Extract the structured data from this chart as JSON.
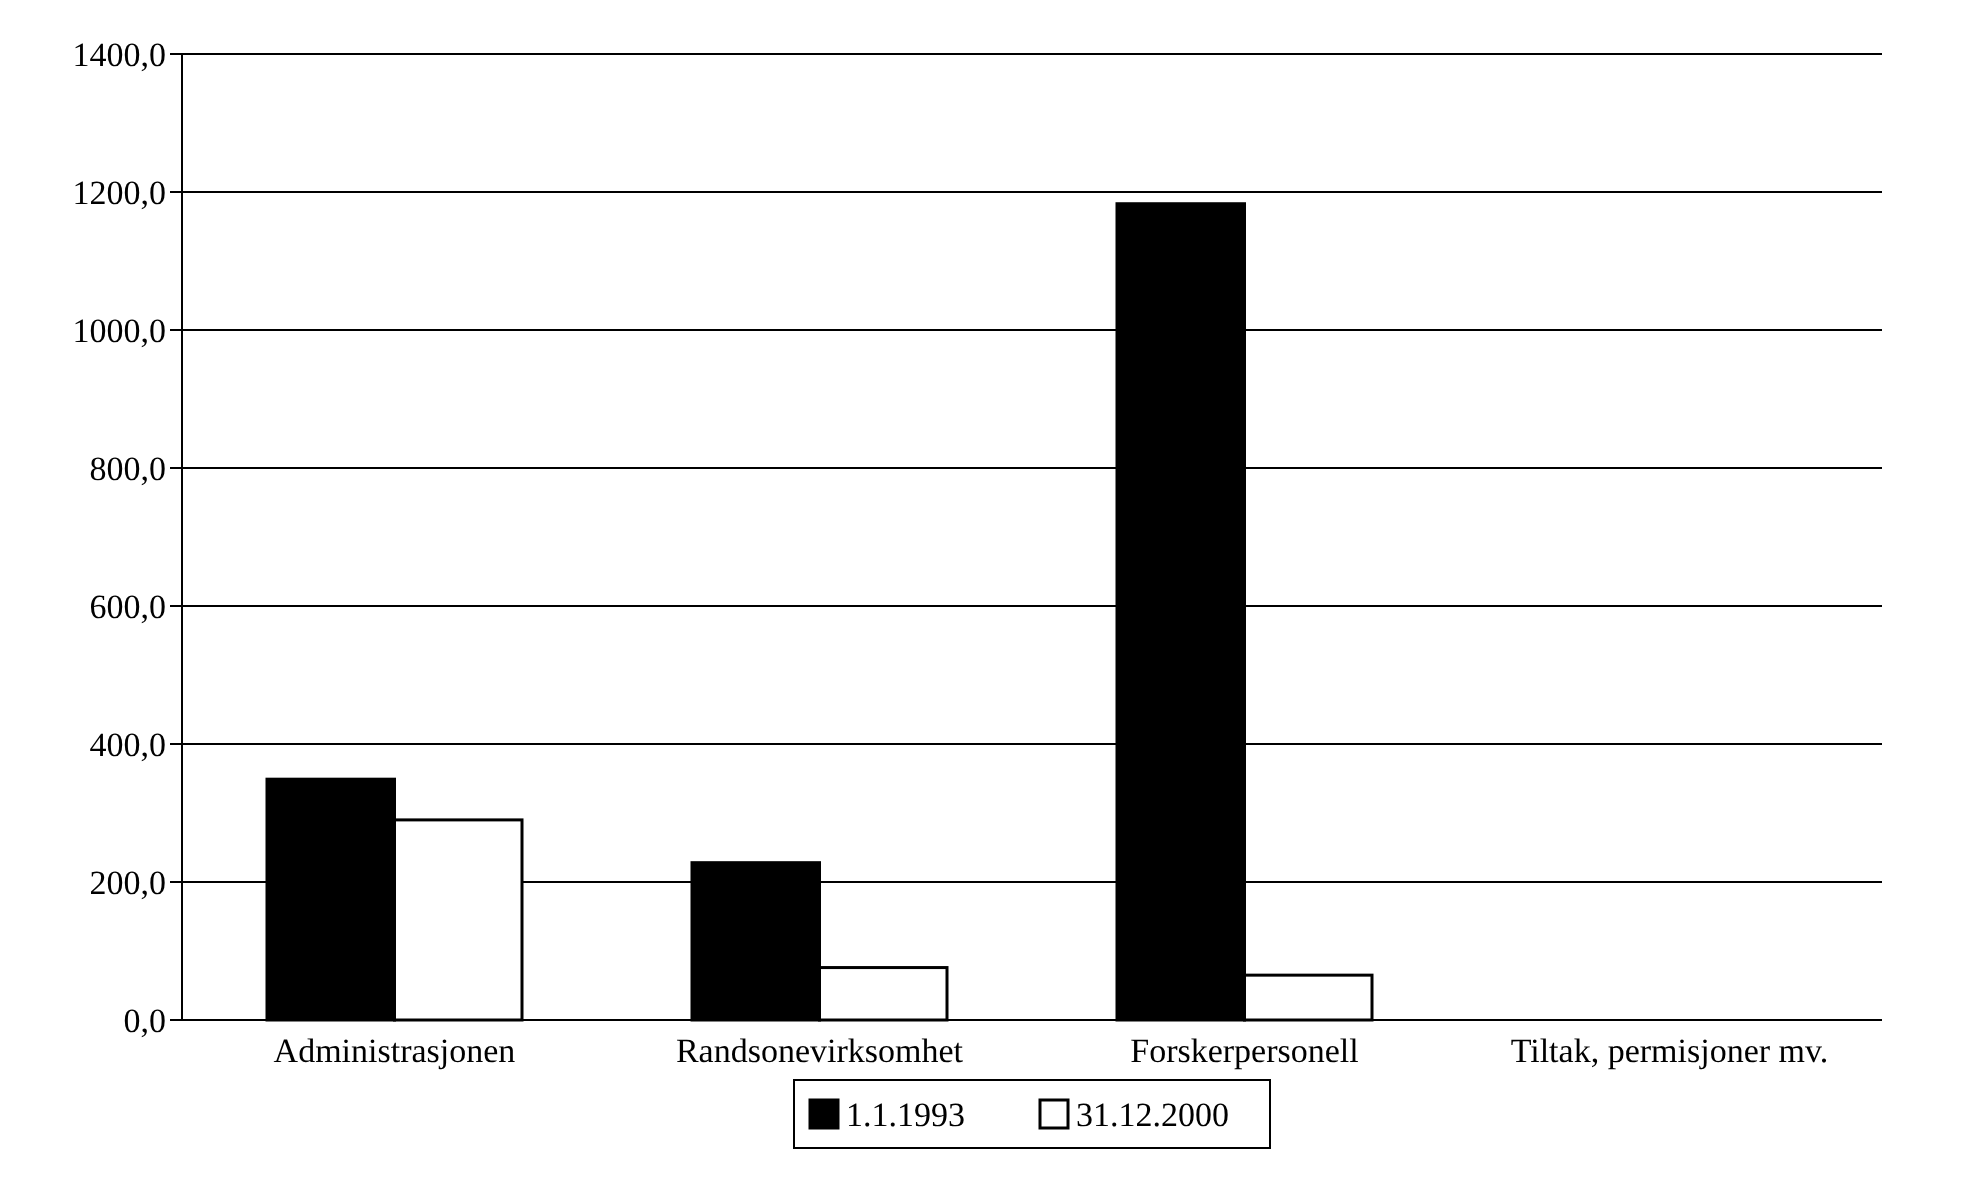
{
  "chart_data": {
    "type": "bar",
    "categories": [
      "Administrasjonen",
      "Randsonevirksomhet",
      "Forskerpersonell",
      "Tiltak, permisjoner mv."
    ],
    "series": [
      {
        "name": "1.1.1993",
        "color": "#000000",
        "values": [
          349,
          228,
          1183,
          null
        ]
      },
      {
        "name": "31.12.2000",
        "color": "#ffffff",
        "values": [
          290,
          76,
          65,
          null
        ]
      }
    ],
    "ylim": [
      0,
      1400
    ],
    "yticks": [
      {
        "value": 0,
        "label": "0,0"
      },
      {
        "value": 200,
        "label": "200,0"
      },
      {
        "value": 400,
        "label": "400,0"
      },
      {
        "value": 600,
        "label": "600,0"
      },
      {
        "value": 800,
        "label": "800,0"
      },
      {
        "value": 1000,
        "label": "1000,0"
      },
      {
        "value": 1200,
        "label": "1200,0"
      },
      {
        "value": 1400,
        "label": "1400,0"
      }
    ],
    "grid": "y",
    "legend": "bottom"
  }
}
